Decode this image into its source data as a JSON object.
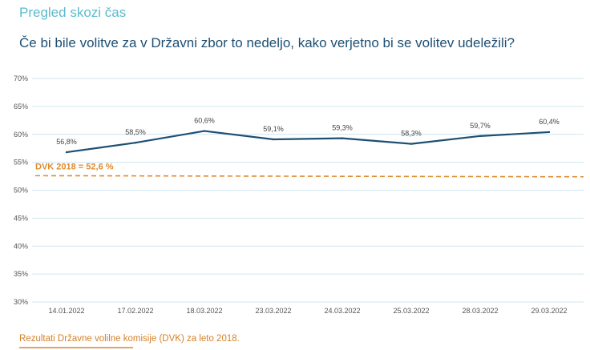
{
  "header": {
    "section_title": "Pregled skozi čas",
    "question": "Če bi bile volitve za v Državni zbor to nedeljo, kako verjetno bi se volitev udeležili?"
  },
  "chart_data": {
    "type": "line",
    "title": "",
    "xlabel": "",
    "ylabel": "",
    "categories": [
      "14.01.2022",
      "17.02.2022",
      "18.03.2022",
      "23.03.2022",
      "24.03.2022",
      "25.03.2022",
      "28.03.2022",
      "29.03.2022"
    ],
    "series": [
      {
        "values": [
          56.8,
          58.5,
          60.6,
          59.1,
          59.3,
          58.3,
          59.7,
          60.4
        ],
        "labels": [
          "56,8%",
          "58,5%",
          "60,6%",
          "59,1%",
          "59,3%",
          "58,3%",
          "59,7%",
          "60,4%"
        ],
        "color": "#1d4f73"
      }
    ],
    "reference_line": {
      "label": "DVK 2018 = 52,6 %",
      "start": 52.6,
      "end": 52.4,
      "color": "#e08a2c",
      "style": "dashed"
    },
    "ylim": [
      30,
      70
    ],
    "yticks": [
      30,
      35,
      40,
      45,
      50,
      55,
      60,
      65,
      70
    ],
    "ytick_labels": [
      "30%",
      "35%",
      "40%",
      "45%",
      "50%",
      "55%",
      "60%",
      "65%",
      "70%"
    ],
    "grid": true,
    "grid_color": "#cfe6ef",
    "legend": "none"
  },
  "footer": {
    "note": "Rezultati Državne volilne komisije (DVK) za leto 2018."
  }
}
